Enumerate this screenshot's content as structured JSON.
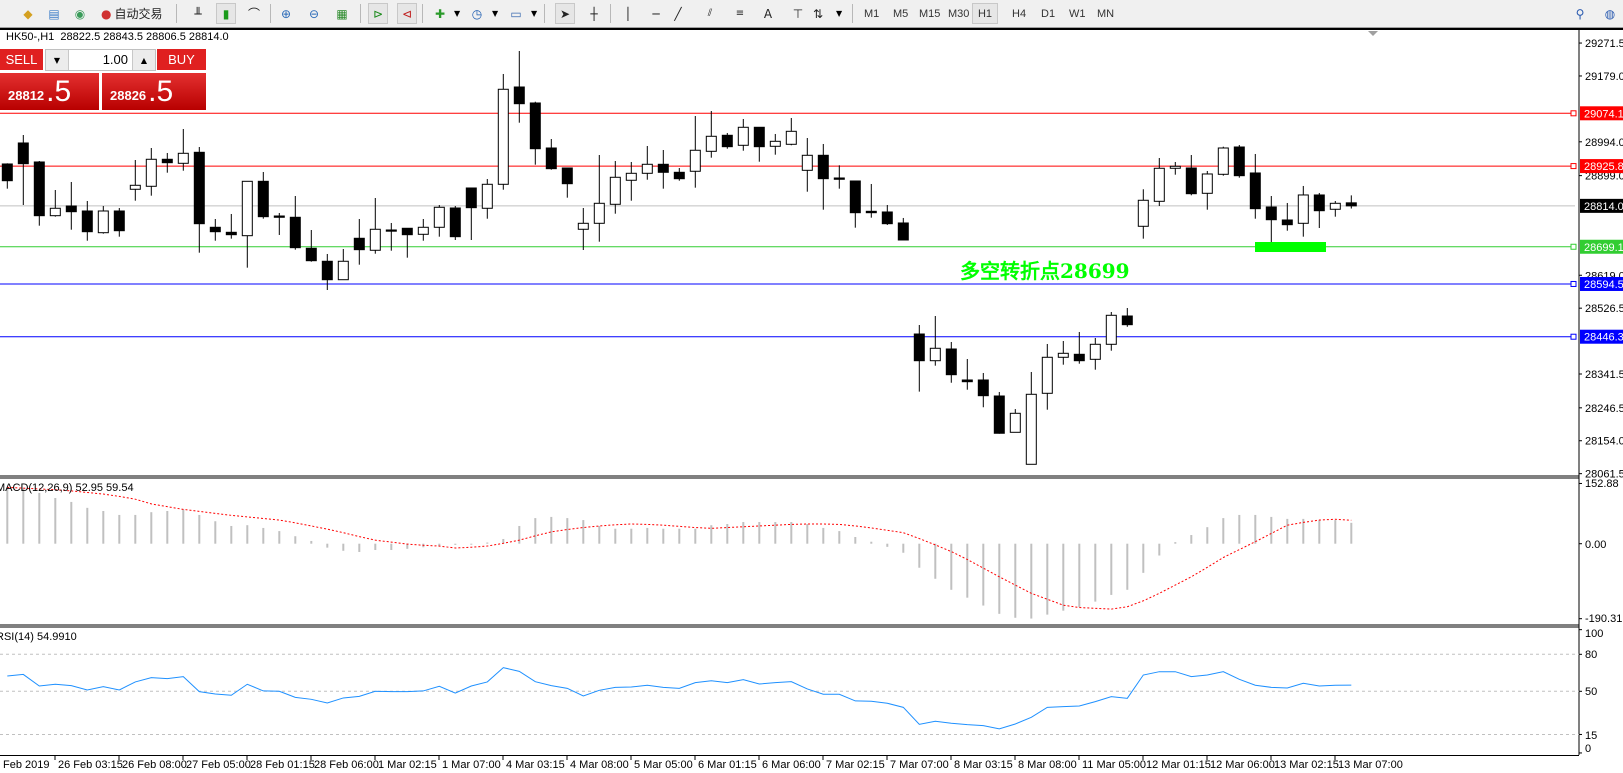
{
  "toolbar": {
    "autotrade_label": "自动交易",
    "timeframes": [
      "M1",
      "M5",
      "M15",
      "M30",
      "H1",
      "H4",
      "D1",
      "W1",
      "MN"
    ],
    "active_timeframe": "H1",
    "tools_text_label": "A"
  },
  "chart_info": {
    "symbol": "HK50-,H1",
    "ohlc": "28822.5 28843.5 28806.5 28814.0"
  },
  "one_click": {
    "sell_label": "SELL",
    "buy_label": "BUY",
    "volume": "1.00",
    "sell_price_main": "28812",
    "sell_price_big": ".5",
    "buy_price_main": "28826",
    "buy_price_big": ".5"
  },
  "annotation": {
    "text": "多空转折点28699",
    "color": "#00ff00"
  },
  "colors": {
    "resistance": "#ff0000",
    "support": "#32cd32",
    "blue_level": "#0000ff",
    "bid": "#c0c0c0",
    "rsi": "#1e90ff",
    "macd_hist": "#c0c0c0",
    "macd_signal": "#ff0000",
    "zone": "#00ff00"
  },
  "chart_data": [
    {
      "type": "candlestick",
      "symbol": "HK50-",
      "timeframe": "H1",
      "ylim": [
        28061.5,
        29271.5
      ],
      "price_ticks": [
        "29271.5",
        "29179.0",
        "28994.0",
        "28899.0",
        "28619.0",
        "28526.5",
        "28341.5",
        "28246.5",
        "28154.0",
        "28061.5"
      ],
      "levels": [
        {
          "value": "29074.1",
          "color": "#ff0000"
        },
        {
          "value": "28925.8",
          "color": "#ff0000"
        },
        {
          "value": "28814.0",
          "color": "#000000",
          "line": "#c0c0c0"
        },
        {
          "value": "28699.1",
          "color": "#32cd32"
        },
        {
          "value": "28594.5",
          "color": "#0000ff"
        },
        {
          "value": "28446.3",
          "color": "#0000ff"
        }
      ],
      "time_labels": [
        "Feb 2019",
        "26 Feb 03:15",
        "26 Feb 08:00",
        "27 Feb 05:00",
        "28 Feb 01:15",
        "28 Feb 06:00",
        "1 Mar 02:15",
        "1 Mar 07:00",
        "4 Mar 03:15",
        "4 Mar 08:00",
        "5 Mar 05:00",
        "6 Mar 01:15",
        "6 Mar 06:00",
        "7 Mar 02:15",
        "7 Mar 07:00",
        "8 Mar 03:15",
        "8 Mar 08:00",
        "11 Mar 05:00",
        "12 Mar 01:15",
        "12 Mar 06:00",
        "13 Mar 02:15",
        "13 Mar 07:00"
      ],
      "ohlc": [
        [
          28931.7,
          28933.6,
          28862.3,
          28884.7
        ],
        [
          28990.7,
          29013.1,
          28816.4,
          28932.5
        ],
        [
          28937.3,
          28940.1,
          28758.3,
          28786.4
        ],
        [
          28786.4,
          28858.6,
          28783.6,
          28807.2
        ],
        [
          28813.6,
          28881.1,
          28747.0,
          28797.6
        ],
        [
          28799.6,
          28827.7,
          28716.1,
          28741.4
        ],
        [
          28738.6,
          28813.6,
          28735.8,
          28799.6
        ],
        [
          28799.6,
          28808.0,
          28727.4,
          28744.2
        ],
        [
          28860.6,
          28942.9,
          28828.5,
          28871.8
        ],
        [
          28869.0,
          28976.6,
          28842.6,
          28944.9
        ],
        [
          28944.9,
          28962.6,
          28907.2,
          28935.3
        ],
        [
          28933.6,
          29030.0,
          28912.8,
          28961.7
        ],
        [
          28964.5,
          28979.4,
          28682.4,
          28763.9
        ],
        [
          28753.8,
          28777.1,
          28716.1,
          28741.4
        ],
        [
          28739.7,
          28791.2,
          28721.8,
          28733.0
        ],
        [
          28730.2,
          28883.0,
          28640.3,
          28883.0
        ],
        [
          28883.0,
          28909.2,
          28778.0,
          28783.6
        ],
        [
          28785.5,
          28794.0,
          28732.2,
          28781.9
        ],
        [
          28781.9,
          28841.7,
          28690.9,
          28696.5
        ],
        [
          28694.8,
          28746.2,
          28657.1,
          28659.9
        ],
        [
          28658.3,
          28678.8,
          28577.6,
          28606.5
        ],
        [
          28606.5,
          28692.8,
          28606.5,
          28658.3
        ],
        [
          28722.9,
          28777.1,
          28648.7,
          28690.9
        ],
        [
          28689.2,
          28836.1,
          28679.6,
          28748.2
        ],
        [
          28746.2,
          28765.9,
          28688.0,
          28744.2
        ],
        [
          28751.0,
          28751.8,
          28668.4,
          28733.0
        ],
        [
          28734.1,
          28777.1,
          28716.1,
          28753.8
        ],
        [
          28753.8,
          28816.4,
          28727.4,
          28810.0
        ],
        [
          28808.0,
          28813.6,
          28718.1,
          28727.4
        ],
        [
          28864.2,
          28864.2,
          28718.1,
          28808.9
        ],
        [
          28807.2,
          28889.5,
          28777.9,
          28874.6
        ],
        [
          28874.6,
          29184.6,
          28859.4,
          29141.6
        ],
        [
          29148.0,
          29249.2,
          29047.7,
          29101.1
        ],
        [
          29103.1,
          29106.7,
          28929.7,
          28974.6
        ],
        [
          28976.6,
          29001.9,
          28915.6,
          28918.5
        ],
        [
          28920.4,
          28920.4,
          28837.0,
          28876.3
        ],
        [
          28748.2,
          28808.0,
          28690.0,
          28765.0
        ],
        [
          28765.0,
          28956.9,
          28713.3,
          28821.2
        ],
        [
          28818.4,
          28940.1,
          28792.0,
          28894.3
        ],
        [
          28885.9,
          28937.3,
          28828.5,
          28905.5
        ],
        [
          28905.5,
          28982.2,
          28887.5,
          28930.8
        ],
        [
          28930.8,
          28971.0,
          28862.3,
          28908.3
        ],
        [
          28908.3,
          28920.4,
          28884.7,
          28890.3
        ],
        [
          28911.2,
          29066.5,
          28865.1,
          28970.2
        ],
        [
          28967.3,
          29080.6,
          28949.4,
          29009.5
        ],
        [
          29012.3,
          29018.8,
          28974.6,
          28980.3
        ],
        [
          28984.2,
          29058.1,
          28969.0,
          29034.8
        ],
        [
          29034.8,
          29034.8,
          28938.1,
          28980.3
        ],
        [
          28981.4,
          29016.0,
          28957.8,
          28995.4
        ],
        [
          28987.0,
          29060.9,
          28984.2,
          29023.5
        ],
        [
          28913.9,
          29004.7,
          28853.8,
          28956.1
        ],
        [
          28956.1,
          28987.9,
          28803.2,
          28890.4
        ],
        [
          28892.3,
          28928.0,
          28862.3,
          28888.7
        ],
        [
          28883.9,
          28883.9,
          28752.7,
          28794.8
        ],
        [
          28798.7,
          28875.5,
          28780.8,
          28794.8
        ],
        [
          28796.8,
          28816.4,
          28760.3,
          28763.9
        ],
        [
          28765.9,
          28780.0,
          28718.1,
          28718.1
        ],
        [
          28453.9,
          28479.2,
          28292.0,
          28378.9
        ],
        [
          28378.9,
          28504.5,
          28364.9,
          28413.8
        ],
        [
          28411.8,
          28431.5,
          28317.0,
          28339.6
        ],
        [
          28324.7,
          28383.7,
          28297.4,
          28319.9
        ],
        [
          28324.7,
          28344.4,
          28248.1,
          28280.6
        ],
        [
          28279.7,
          28291.0,
          28173.8,
          28175.0
        ],
        [
          28177.7,
          28243.0,
          28177.7,
          28231.1
        ],
        [
          28087.8,
          28347.2,
          28087.8,
          28284.5
        ],
        [
          28287.3,
          28425.9,
          28241.2,
          28388.5
        ],
        [
          28388.5,
          28434.3,
          28367.7,
          28399.7
        ],
        [
          28396.9,
          28459.6,
          28370.5,
          28378.9
        ],
        [
          28382.8,
          28442.7,
          28353.6,
          28425.0
        ],
        [
          28425.0,
          28515.8,
          28407.0,
          28506.5
        ],
        [
          28504.5,
          28527.0,
          28474.2,
          28480.1
        ],
        [
          28756.6,
          28860.6,
          28721.8,
          28829.7
        ],
        [
          28826.8,
          28948.5,
          28813.6,
          28919.6
        ],
        [
          28919.6,
          28937.3,
          28901.6,
          28925.2
        ],
        [
          28920.4,
          28956.9,
          28843.7,
          28848.2
        ],
        [
          28849.3,
          28912.0,
          28803.2,
          28903.6
        ],
        [
          28902.7,
          28980.3,
          28898.8,
          28976.6
        ],
        [
          28979.4,
          28985.0,
          28893.2,
          28898.8
        ],
        [
          28906.4,
          28959.8,
          28777.9,
          28806.1
        ],
        [
          28810.8,
          28841.7,
          28712.5,
          28775.1
        ],
        [
          28774.3,
          28822.1,
          28744.2,
          28761.1
        ],
        [
          28765.0,
          28869.9,
          28727.4,
          28844.6
        ],
        [
          28844.6,
          28850.2,
          28751.8,
          28800.4
        ],
        [
          28804.4,
          28827.7,
          28783.6,
          28821.2
        ],
        [
          28822.5,
          28843.5,
          28806.5,
          28814.0
        ]
      ]
    },
    {
      "type": "bar+line",
      "title": "MACD(12,26,9) 52.95 59.54",
      "ylim": [
        -190.31,
        152.88
      ],
      "ticks": [
        "152.88",
        "0.00",
        "-190.31"
      ],
      "histogram": [
        140,
        140,
        129,
        116,
        106,
        91,
        83,
        73,
        73,
        80,
        83,
        87,
        73,
        57,
        45,
        47,
        40,
        32,
        19,
        7,
        -10,
        -18,
        -21,
        -16,
        -16,
        -13,
        -9,
        -6,
        -3,
        -1,
        3,
        12,
        45,
        65,
        68,
        65,
        60,
        45,
        38,
        38,
        40,
        38,
        38,
        38,
        47,
        50,
        55,
        55,
        55,
        55,
        50,
        40,
        32,
        17,
        5,
        -8,
        -23,
        -61,
        -89,
        -117,
        -137,
        -157,
        -178,
        -188,
        -190,
        -180,
        -170,
        -161,
        -147,
        -130,
        -117,
        -74,
        -30,
        4,
        22,
        42,
        65,
        73,
        73,
        68,
        63,
        63,
        60,
        60,
        52.95
      ],
      "signal": [
        143,
        141,
        139,
        137,
        134,
        130,
        126,
        120,
        113,
        101,
        94,
        87,
        82,
        77,
        72,
        68,
        64,
        60,
        53,
        45,
        37,
        28,
        18,
        9,
        4,
        -1,
        -4,
        -6,
        -11,
        -9,
        -6,
        1,
        9,
        20,
        30,
        36,
        41,
        45,
        48,
        50,
        49,
        47,
        44,
        41,
        39,
        41,
        43,
        45,
        47,
        49,
        50,
        50,
        49,
        45,
        40,
        34,
        28,
        13,
        -3,
        -20,
        -40,
        -62,
        -84,
        -105,
        -126,
        -141,
        -156,
        -162,
        -164,
        -166,
        -160,
        -145,
        -126,
        -105,
        -84,
        -60,
        -35,
        -15,
        5,
        26,
        47,
        54,
        60,
        62,
        59.54
      ]
    },
    {
      "type": "line",
      "title": "RSI(14) 54.9910",
      "ylim": [
        0,
        100
      ],
      "ticks": [
        "100",
        "80",
        "50",
        "15",
        "0"
      ],
      "levels": [
        80,
        50,
        15
      ],
      "values": [
        62.4,
        63.7,
        54.3,
        55.7,
        54.6,
        51.1,
        53.8,
        51.1,
        57.6,
        61.1,
        60.3,
        61.9,
        49.7,
        47.8,
        46.8,
        55.7,
        50.3,
        50.0,
        45.1,
        43.5,
        40.5,
        44.6,
        45.9,
        50.0,
        49.7,
        49.7,
        50.3,
        54.1,
        48.6,
        54.3,
        57.6,
        69.2,
        66.2,
        57.8,
        54.6,
        52.4,
        46.2,
        50.8,
        53.2,
        53.5,
        54.9,
        53.2,
        52.4,
        57.0,
        58.6,
        57.0,
        59.5,
        55.9,
        57.0,
        57.8,
        51.9,
        47.6,
        47.6,
        42.2,
        41.9,
        40.3,
        37.0,
        23.2,
        25.7,
        24.1,
        23.0,
        22.2,
        19.5,
        23.5,
        28.9,
        37.0,
        37.6,
        38.1,
        41.6,
        45.7,
        44.3,
        63.2,
        65.9,
        65.9,
        61.9,
        63.2,
        65.9,
        59.7,
        54.9,
        53.2,
        52.7,
        56.5,
        54.3,
        54.9,
        54.991
      ]
    }
  ]
}
